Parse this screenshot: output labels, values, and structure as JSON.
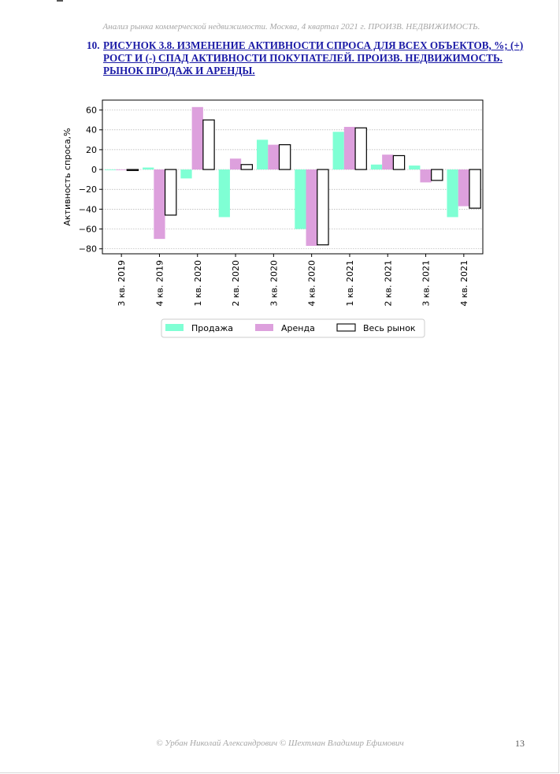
{
  "document": {
    "running_header": "Анализ рынка коммерческой недвижимости.  Москва,  4 квартал 2021 г.  ПРОИЗВ. НЕДВИЖИМОСТЬ.",
    "figure_number": "10.",
    "figure_title": "РИСУНОК 3.8. ИЗМЕНЕНИЕ АКТИВНОСТИ СПРОСА ДЛЯ ВСЕХ ОБЪЕКТОВ, %; (+) РОСТ И (-) СПАД АКТИВНОСТИ ПОКУПАТЕЛЕЙ. ПРОИЗВ. НЕДВИЖИМОСТЬ. РЫНОК ПРОДАЖ И АРЕНДЫ.",
    "footer_authors": "© Урбан Николай Александрович   © Шехтман Владимир Ефимович",
    "page_number": "13"
  },
  "chart_data": {
    "type": "bar",
    "ylabel": "Активность спроса,%",
    "xlabel": "",
    "ylim": [
      -85,
      70
    ],
    "yticks": [
      60,
      40,
      20,
      0,
      -20,
      -40,
      -60,
      -80
    ],
    "grid": true,
    "legend_position": "bottom-center",
    "categories": [
      "3 кв. 2019",
      "4 кв. 2019",
      "1 кв. 2020",
      "2 кв. 2020",
      "3 кв. 2020",
      "4 кв. 2020",
      "1 кв. 2021",
      "2 кв. 2021",
      "3 кв. 2021",
      "4 кв. 2021"
    ],
    "series": [
      {
        "name": "Продажа",
        "color": "#7fffd4",
        "outline": false,
        "values": [
          0,
          2,
          -9,
          -48,
          30,
          -60,
          38,
          5,
          4,
          -48
        ]
      },
      {
        "name": "Аренда",
        "color": "#dda0dd",
        "outline": false,
        "values": [
          0,
          -70,
          63,
          11,
          25,
          -77,
          43,
          15,
          -13,
          -37
        ]
      },
      {
        "name": "Весь рынок",
        "color": "#ffffff",
        "outline": true,
        "values": [
          -1,
          -46,
          50,
          5,
          25,
          -76,
          42,
          14,
          -11,
          -39
        ]
      }
    ]
  }
}
